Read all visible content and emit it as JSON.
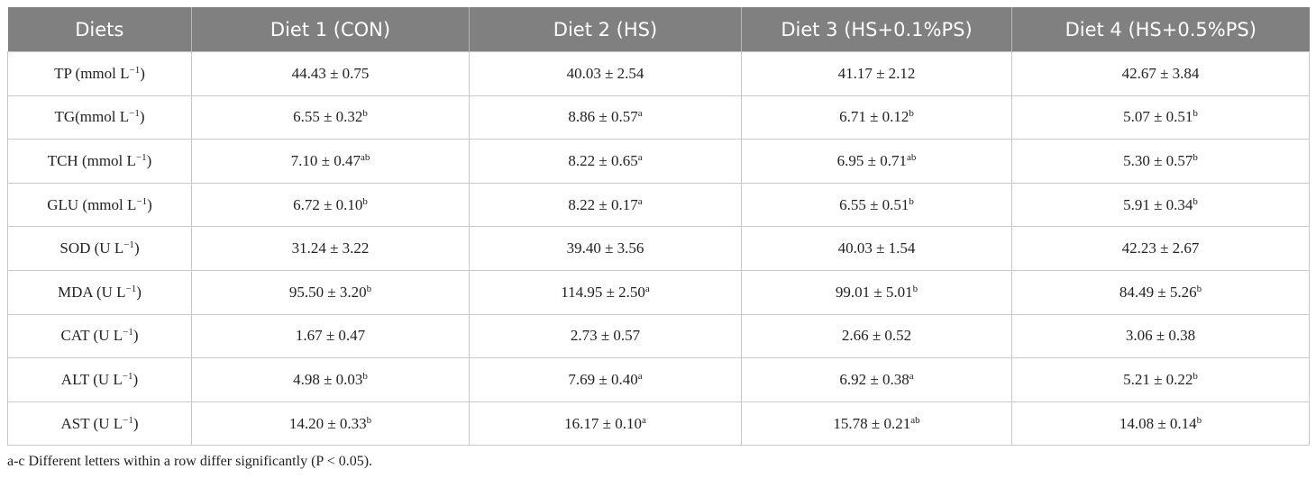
{
  "table": {
    "header": [
      "Diets",
      "Diet 1 (CON)",
      "Diet 2 (HS)",
      "Diet 3 (HS+0.1%PS)",
      "Diet 4 (HS+0.5%PS)"
    ],
    "rows": [
      {
        "label": {
          "text": "TP (mmol L",
          "sup": "−1",
          "end": ")"
        },
        "cells": [
          {
            "text": "44.43 ± 0.75"
          },
          {
            "text": "40.03 ± 2.54"
          },
          {
            "text": "41.17 ± 2.12"
          },
          {
            "text": "42.67 ± 3.84"
          }
        ]
      },
      {
        "label": {
          "text": "TG(mmol L",
          "sup": "−1",
          "end": ")"
        },
        "cells": [
          {
            "text": "6.55 ± 0.32",
            "sup": "b"
          },
          {
            "text": "8.86 ± 0.57",
            "sup": "a"
          },
          {
            "text": "6.71 ± 0.12",
            "sup": "b"
          },
          {
            "text": "5.07 ± 0.51",
            "sup": "b"
          }
        ]
      },
      {
        "label": {
          "text": "TCH (mmol L",
          "sup": "−1",
          "end": ")"
        },
        "cells": [
          {
            "text": "7.10 ± 0.47",
            "sup": "ab"
          },
          {
            "text": "8.22 ± 0.65",
            "sup": "a"
          },
          {
            "text": "6.95 ± 0.71",
            "sup": "ab"
          },
          {
            "text": "5.30 ± 0.57",
            "sup": "b"
          }
        ]
      },
      {
        "label": {
          "text": "GLU (mmol L",
          "sup": "−1",
          "end": ")"
        },
        "cells": [
          {
            "text": "6.72 ± 0.10",
            "sup": "b"
          },
          {
            "text": "8.22 ± 0.17",
            "sup": "a"
          },
          {
            "text": "6.55 ± 0.51",
            "sup": "b"
          },
          {
            "text": "5.91 ± 0.34",
            "sup": "b"
          }
        ]
      },
      {
        "label": {
          "text": "SOD (U L",
          "sup": "−1",
          "end": ")"
        },
        "cells": [
          {
            "text": "31.24 ± 3.22"
          },
          {
            "text": "39.40 ± 3.56"
          },
          {
            "text": "40.03 ± 1.54"
          },
          {
            "text": "42.23 ± 2.67"
          }
        ]
      },
      {
        "label": {
          "text": "MDA (U L",
          "sup": "−1",
          "end": ")"
        },
        "cells": [
          {
            "text": "95.50 ± 3.20",
            "sup": "b"
          },
          {
            "text": "114.95 ± 2.50",
            "sup": "a"
          },
          {
            "text": "99.01 ± 5.01",
            "sup": "b"
          },
          {
            "text": "84.49 ± 5.26",
            "sup": "b"
          }
        ]
      },
      {
        "label": {
          "text": "CAT (U L",
          "sup": "−1",
          "end": ")"
        },
        "cells": [
          {
            "text": "1.67 ± 0.47"
          },
          {
            "text": "2.73 ± 0.57"
          },
          {
            "text": "2.66 ± 0.52"
          },
          {
            "text": "3.06 ± 0.38"
          }
        ]
      },
      {
        "label": {
          "text": "ALT (U L",
          "sup": "−1",
          "end": ")"
        },
        "cells": [
          {
            "text": "4.98 ± 0.03",
            "sup": "b"
          },
          {
            "text": "7.69 ± 0.40",
            "sup": "a"
          },
          {
            "text": "6.92 ± 0.38",
            "sup": "a"
          },
          {
            "text": "5.21 ± 0.22",
            "sup": "b"
          }
        ]
      },
      {
        "label": {
          "text": "AST (U L",
          "sup": "−1",
          "end": ")"
        },
        "cells": [
          {
            "text": "14.20 ± 0.33",
            "sup": "b"
          },
          {
            "text": "16.17 ± 0.10",
            "sup": "a"
          },
          {
            "text": "15.78 ± 0.21",
            "sup": "ab"
          },
          {
            "text": "14.08 ± 0.14",
            "sup": "b"
          }
        ]
      }
    ],
    "footnote": "a-c Different letters within a row differ significantly (P < 0.05)."
  }
}
